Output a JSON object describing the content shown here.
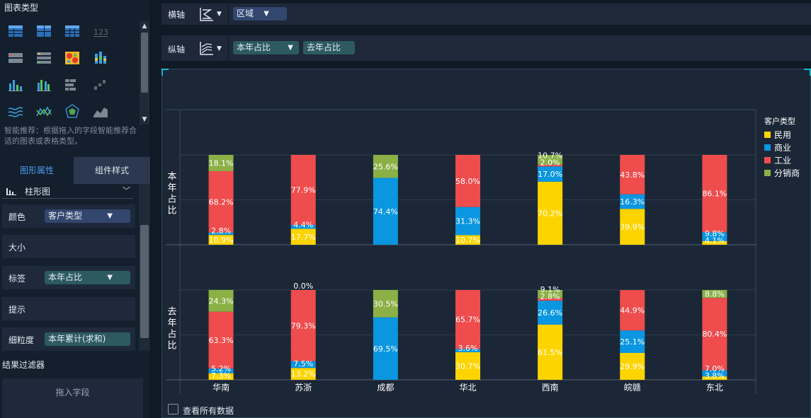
{
  "left_panel": {
    "chart_type_title": "图表类型",
    "chart_icons": [
      "table-icon",
      "cross-table-icon",
      "detail-table-icon",
      "kpi-number-icon",
      "indicator-card-icon",
      "indicator-list-icon",
      "heatmap-icon",
      "stacked-bar-icon",
      "bar-chart-icon",
      "grouped-bar-icon",
      "bar-horizontal-icon",
      "waterfall-icon",
      "multi-line-icon",
      "radar-line-icon",
      "radar-icon",
      "area-icon"
    ],
    "recommend_text": "智能推荐：根据拖入的字段智能推荐合适的图表或表格类型。",
    "tabs": [
      "图形属性",
      "组件样式"
    ],
    "chart_kind": "柱形图",
    "props": [
      {
        "label": "颜色",
        "chip": "客户类型",
        "chip_style": "blue",
        "filter": true
      },
      {
        "label": "大小"
      },
      {
        "label": "标签",
        "chip": "本年占比",
        "chip_style": "teal",
        "filter": true
      },
      {
        "label": "提示"
      },
      {
        "label": "细粒度",
        "chip": "本年累计(求和)",
        "chip_style": "teal",
        "filter": false
      }
    ],
    "filter_title": "结果过滤器",
    "drop_zone": "拖入字段"
  },
  "axes_bar": {
    "x_label": "横轴",
    "x_fields": [
      {
        "text": "区域",
        "style": "blue",
        "filter": true
      }
    ],
    "y_label": "纵轴",
    "y_fields": [
      {
        "text": "本年占比",
        "style": "teal",
        "filter": true
      },
      {
        "text": "去年占比",
        "style": "teal",
        "filter": false
      }
    ]
  },
  "colors": {
    "民用": "#fed400",
    "商业": "#0a96e0",
    "工业": "#ee4c4d",
    "分销商": "#8bb046"
  },
  "show_all_data": "查看所有数据",
  "chart_data": {
    "type": "bar",
    "stacked": true,
    "percent": true,
    "title": "",
    "categories": [
      "华南",
      "苏浙",
      "成都",
      "华北",
      "西南",
      "皖赣",
      "东北"
    ],
    "legend": {
      "title": "客户类型",
      "position": "right",
      "entries": [
        "民用",
        "商业",
        "工业",
        "分销商"
      ]
    },
    "panels": [
      {
        "ylabel": "本年占比",
        "series": [
          {
            "name": "民用",
            "values": [
              10.9,
              17.7,
              0,
              10.7,
              70.2,
              39.9,
              4.1
            ]
          },
          {
            "name": "商业",
            "values": [
              2.8,
              4.4,
              74.4,
              31.3,
              17.0,
              16.3,
              9.8
            ]
          },
          {
            "name": "工业",
            "values": [
              68.2,
              77.9,
              0,
              58.0,
              2.0,
              43.8,
              86.1
            ]
          },
          {
            "name": "分销商",
            "values": [
              18.1,
              0,
              25.6,
              0,
              10.7,
              0,
              0
            ]
          }
        ]
      },
      {
        "ylabel": "去年占比",
        "series": [
          {
            "name": "民用",
            "values": [
              7.3,
              13.2,
              0,
              30.7,
              61.5,
              29.9,
              3.8
            ]
          },
          {
            "name": "商业",
            "values": [
              5.2,
              7.5,
              69.5,
              3.6,
              26.6,
              25.1,
              7.0
            ]
          },
          {
            "name": "工业",
            "values": [
              63.3,
              79.3,
              0,
              65.7,
              2.8,
              44.9,
              80.4
            ]
          },
          {
            "name": "分销商",
            "values": [
              24.3,
              0.0,
              30.5,
              0,
              9.1,
              0,
              8.8
            ]
          }
        ]
      }
    ],
    "ylim": [
      0,
      100
    ],
    "grid": true
  }
}
